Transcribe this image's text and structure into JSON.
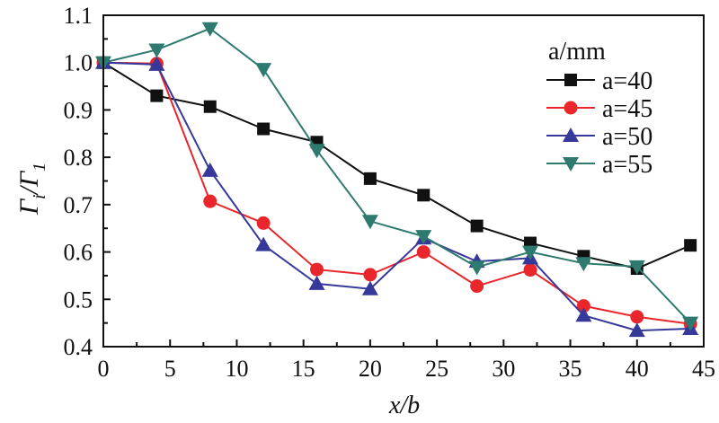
{
  "chart_data": {
    "type": "line",
    "title": "",
    "xlabel": "x/b",
    "ylabel": "Γi/Γ1",
    "xlim": [
      0,
      45
    ],
    "ylim": [
      0.4,
      1.1
    ],
    "xticks": [
      "0",
      "5",
      "10",
      "15",
      "20",
      "25",
      "30",
      "35",
      "40",
      "45"
    ],
    "yticks": [
      "0.4",
      "0.5",
      "0.6",
      "0.7",
      "0.8",
      "0.9",
      "1.0",
      "1.1"
    ],
    "legend_title": "a/mm",
    "legend_position": "top-right",
    "x": [
      0,
      4,
      8,
      12,
      16,
      20,
      24,
      28,
      32,
      36,
      40,
      44
    ],
    "series": [
      {
        "name": "a=40",
        "color": "#111111",
        "marker": "square",
        "values": [
          1.0,
          0.93,
          0.907,
          0.86,
          0.832,
          0.755,
          0.72,
          0.655,
          0.619,
          0.591,
          0.565,
          0.614
        ]
      },
      {
        "name": "a=45",
        "color": "#e8262b",
        "marker": "circle",
        "values": [
          1.0,
          0.998,
          0.707,
          0.661,
          0.563,
          0.552,
          0.6,
          0.528,
          0.562,
          0.486,
          0.463,
          0.448
        ]
      },
      {
        "name": "a=50",
        "color": "#36399a",
        "marker": "triangle-up",
        "values": [
          1.0,
          0.996,
          0.772,
          0.615,
          0.533,
          0.522,
          0.629,
          0.58,
          0.587,
          0.466,
          0.434,
          0.438
        ]
      },
      {
        "name": "a=55",
        "color": "#2f7a6e",
        "marker": "triangle-down",
        "values": [
          1.0,
          1.027,
          1.072,
          0.986,
          0.815,
          0.665,
          0.633,
          0.568,
          0.6,
          0.576,
          0.569,
          0.45
        ]
      }
    ]
  }
}
